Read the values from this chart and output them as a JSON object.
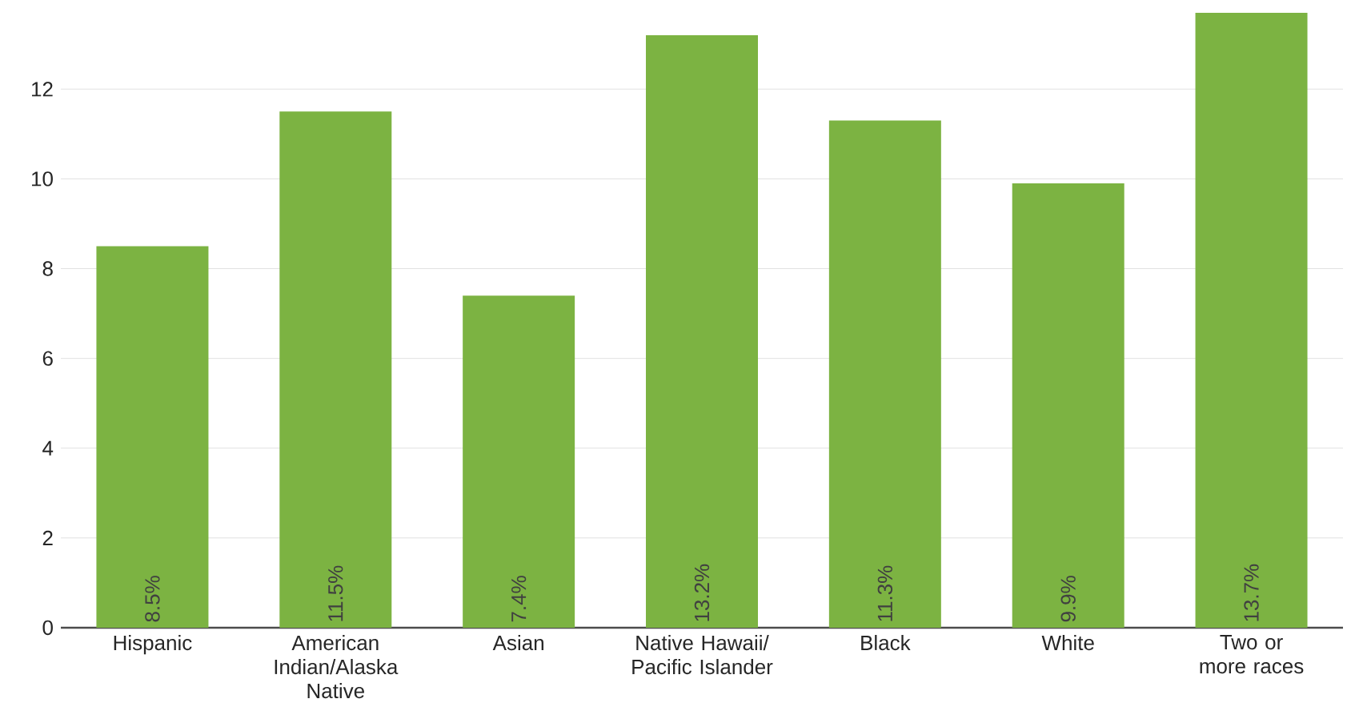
{
  "chart_data": {
    "type": "bar",
    "categories": [
      "Hispanic",
      "American Indian/Alaska Native",
      "Asian",
      "Native Hawaii/ Pacific Islander",
      "Black",
      "White",
      "Two or more races"
    ],
    "values": [
      8.5,
      11.5,
      7.4,
      13.2,
      11.3,
      9.9,
      13.7
    ],
    "value_labels": [
      "8.5%",
      "11.5%",
      "7.4%",
      "13.2%",
      "11.3%",
      "9.9%",
      "13.7%"
    ],
    "color": "#7cb342",
    "ylim": [
      0,
      13.7
    ],
    "yticks": [
      0,
      2,
      4,
      6,
      8,
      10,
      12
    ],
    "grid": "y"
  }
}
